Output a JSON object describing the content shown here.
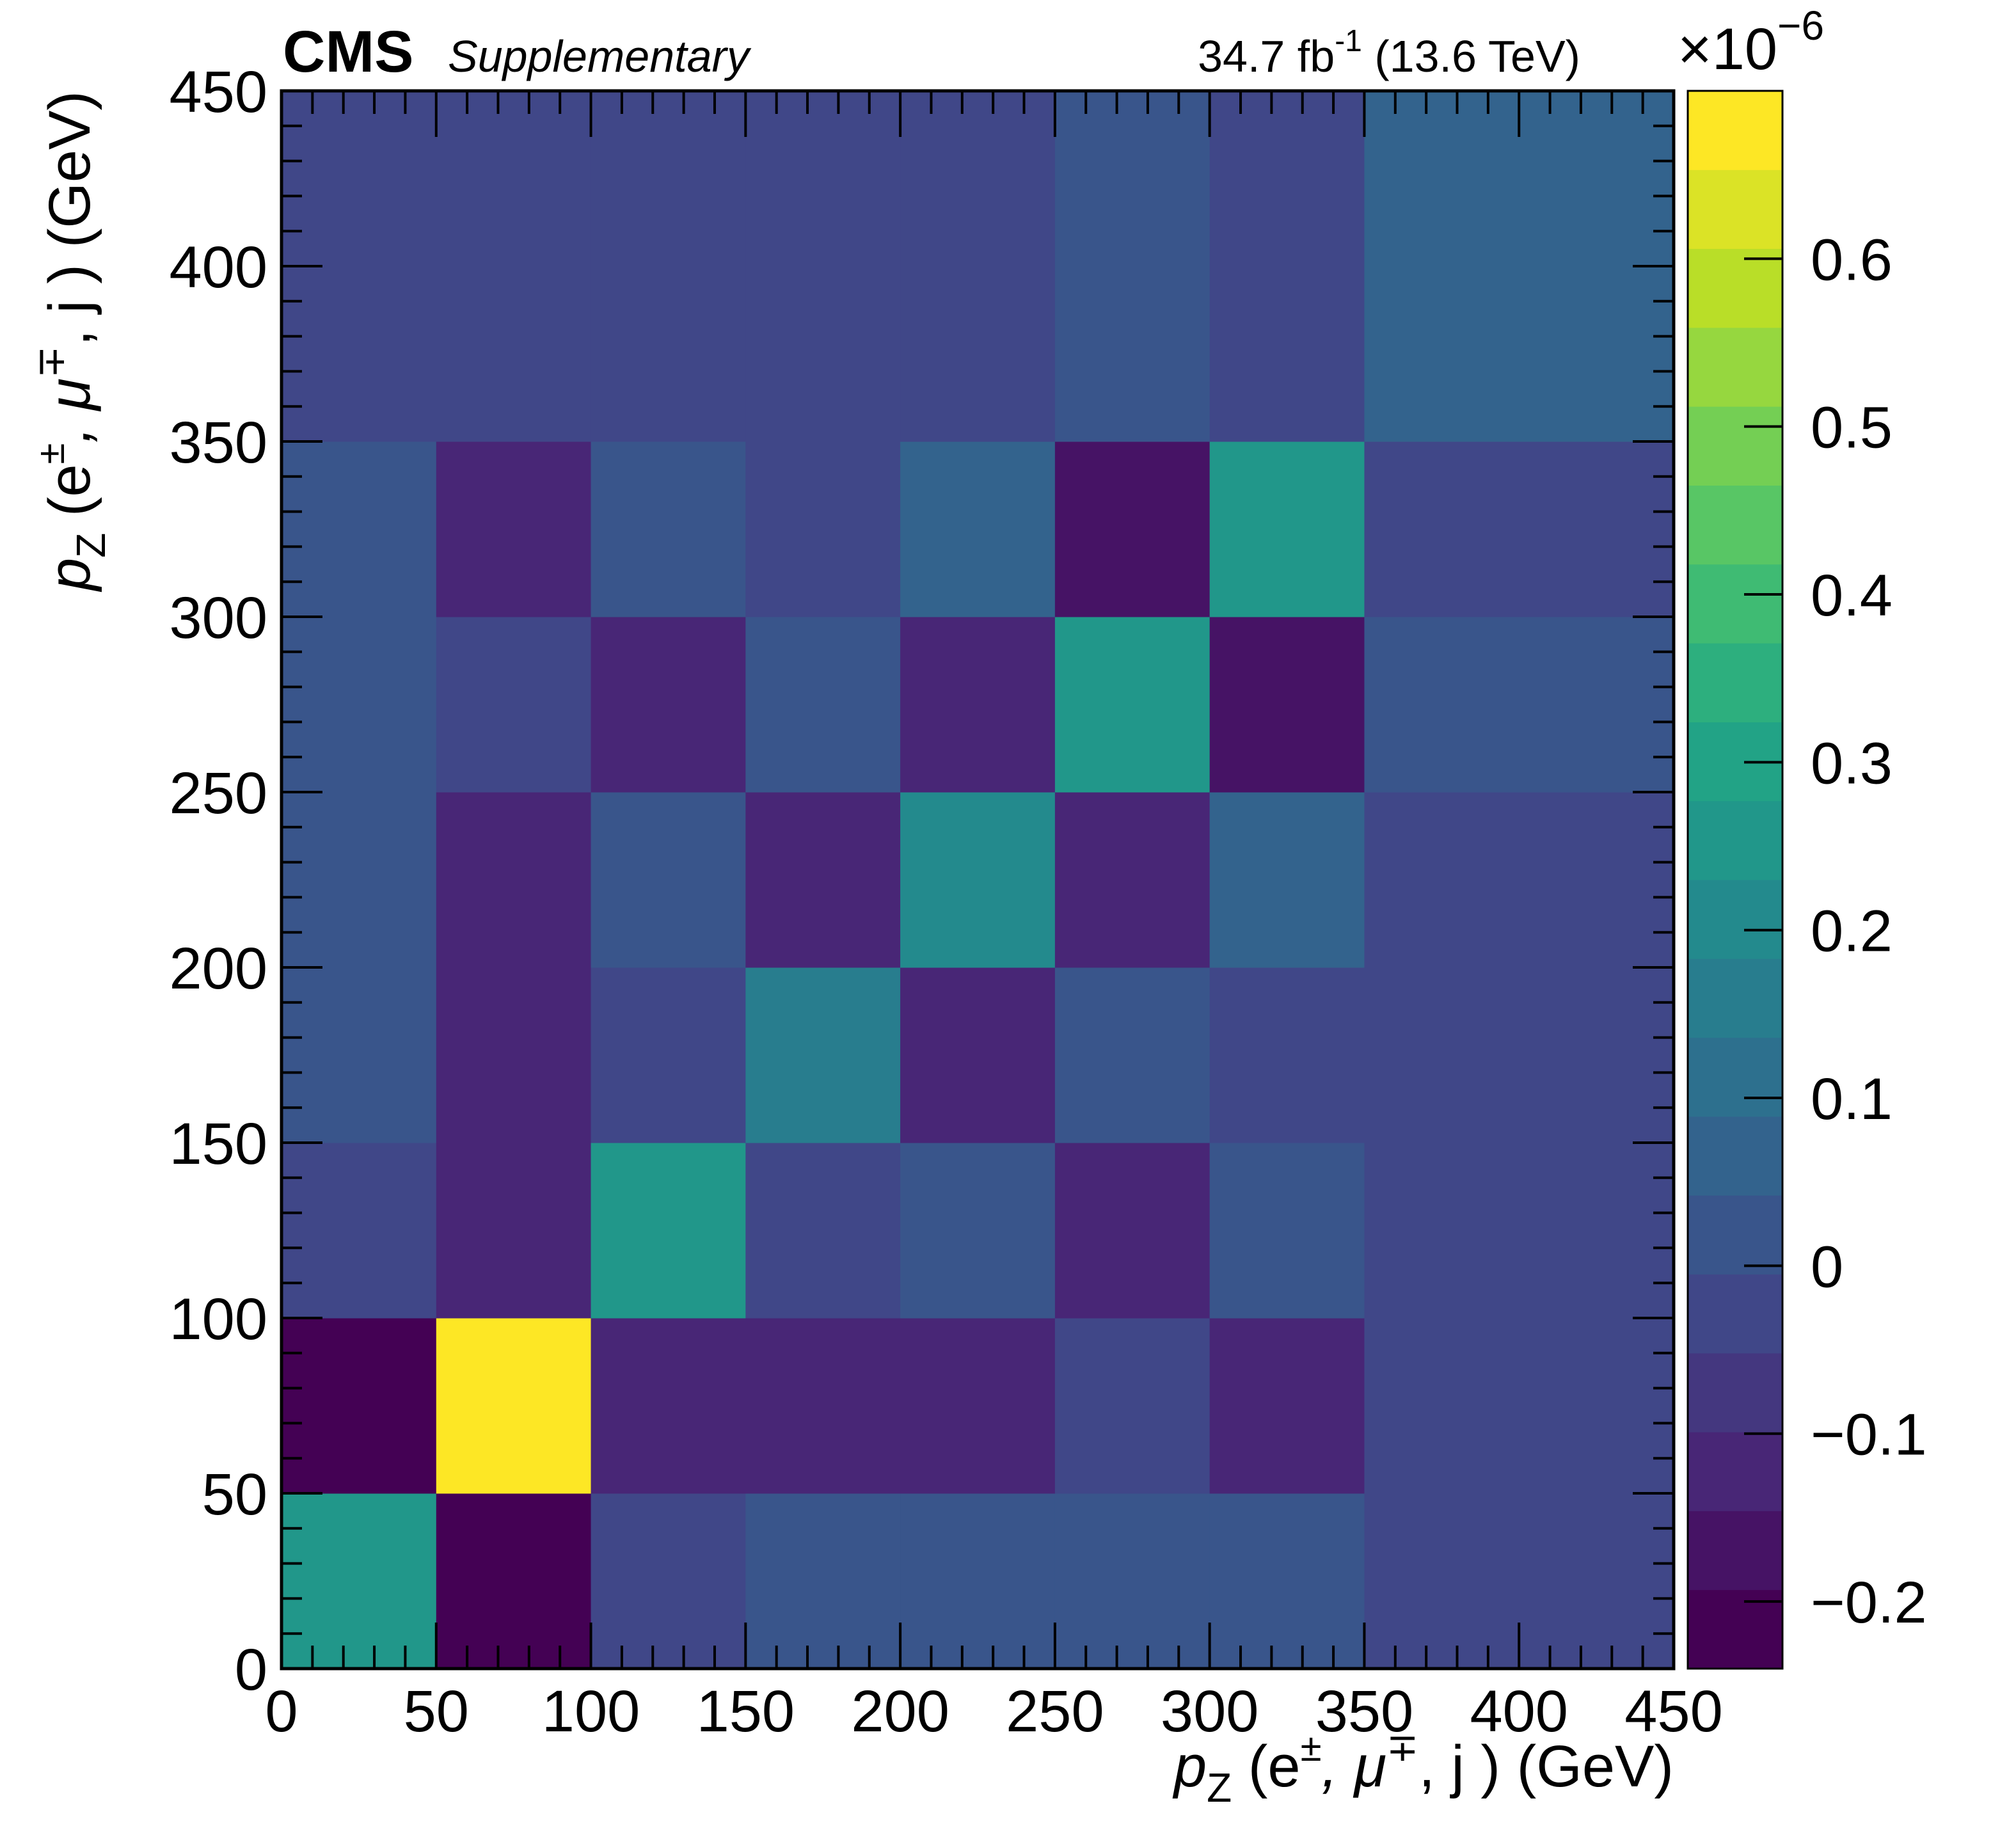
{
  "header": {
    "experiment": "CMS",
    "label": "Supplementary",
    "lumi_value": "34.7 fb",
    "lumi_exp": "-1",
    "energy": " (13.6 TeV)"
  },
  "colorbar": {
    "multiplier_base": "×10",
    "multiplier_exp": "−6",
    "ticks": [
      {
        "value": -0.2,
        "label": "−0.2"
      },
      {
        "value": -0.1,
        "label": "−0.1"
      },
      {
        "value": 0.0,
        "label": "0"
      },
      {
        "value": 0.1,
        "label": "0.1"
      },
      {
        "value": 0.2,
        "label": "0.2"
      },
      {
        "value": 0.3,
        "label": "0.3"
      },
      {
        "value": 0.4,
        "label": "0.4"
      },
      {
        "value": 0.5,
        "label": "0.5"
      },
      {
        "value": 0.6,
        "label": "0.6"
      }
    ],
    "range": [
      -0.24,
      0.7
    ],
    "n_levels": 20
  },
  "chart_data": {
    "type": "heatmap",
    "x_bin_edges": [
      0,
      50,
      100,
      150,
      200,
      250,
      300,
      350,
      450
    ],
    "y_bin_edges": [
      0,
      50,
      100,
      150,
      200,
      250,
      300,
      350,
      450
    ],
    "xlim": [
      0,
      450
    ],
    "ylim": [
      0,
      450
    ],
    "xlabel": {
      "var": "p",
      "sub": "Z",
      "rest": " (e",
      "sup1": "±",
      "mid": ", μ",
      "sup2": "∓",
      "end": ", j ) (GeV)"
    },
    "ylabel": {
      "var": "p",
      "sub": "Z",
      "rest": " (e",
      "sup1": "±",
      "mid": ", μ",
      "sup2": "∓",
      "end": ", j ) (GeV)"
    },
    "x_ticks": [
      {
        "value": 0,
        "label": "0"
      },
      {
        "value": 50,
        "label": "50"
      },
      {
        "value": 100,
        "label": "100"
      },
      {
        "value": 150,
        "label": "150"
      },
      {
        "value": 200,
        "label": "200"
      },
      {
        "value": 250,
        "label": "250"
      },
      {
        "value": 300,
        "label": "300"
      },
      {
        "value": 350,
        "label": "350"
      },
      {
        "value": 400,
        "label": "400"
      },
      {
        "value": 450,
        "label": "450"
      }
    ],
    "y_ticks": [
      {
        "value": 0,
        "label": "0"
      },
      {
        "value": 50,
        "label": "50"
      },
      {
        "value": 100,
        "label": "100"
      },
      {
        "value": 150,
        "label": "150"
      },
      {
        "value": 200,
        "label": "200"
      },
      {
        "value": 250,
        "label": "250"
      },
      {
        "value": 300,
        "label": "300"
      },
      {
        "value": 350,
        "label": "350"
      },
      {
        "value": 400,
        "label": "400"
      },
      {
        "value": 450,
        "label": "450"
      }
    ],
    "z_multiplier": 1e-06,
    "values": [
      [
        0.25,
        -0.22,
        -0.05,
        0.0,
        0.0,
        0.0,
        0.0,
        -0.05
      ],
      [
        -0.22,
        0.68,
        -0.1,
        -0.1,
        -0.1,
        -0.05,
        -0.1,
        -0.05
      ],
      [
        -0.05,
        -0.1,
        0.27,
        -0.05,
        0.0,
        -0.1,
        0.0,
        -0.05
      ],
      [
        0.0,
        -0.1,
        -0.05,
        0.18,
        -0.1,
        0.02,
        -0.05,
        -0.05
      ],
      [
        0.0,
        -0.1,
        0.02,
        -0.1,
        0.2,
        -0.1,
        0.07,
        -0.05
      ],
      [
        0.0,
        -0.05,
        -0.1,
        0.02,
        -0.1,
        0.27,
        -0.15,
        0.0
      ],
      [
        0.0,
        -0.1,
        0.02,
        -0.05,
        0.07,
        -0.15,
        0.25,
        -0.05
      ],
      [
        -0.05,
        -0.05,
        -0.05,
        -0.05,
        -0.05,
        0.02,
        -0.05,
        0.05
      ]
    ]
  }
}
